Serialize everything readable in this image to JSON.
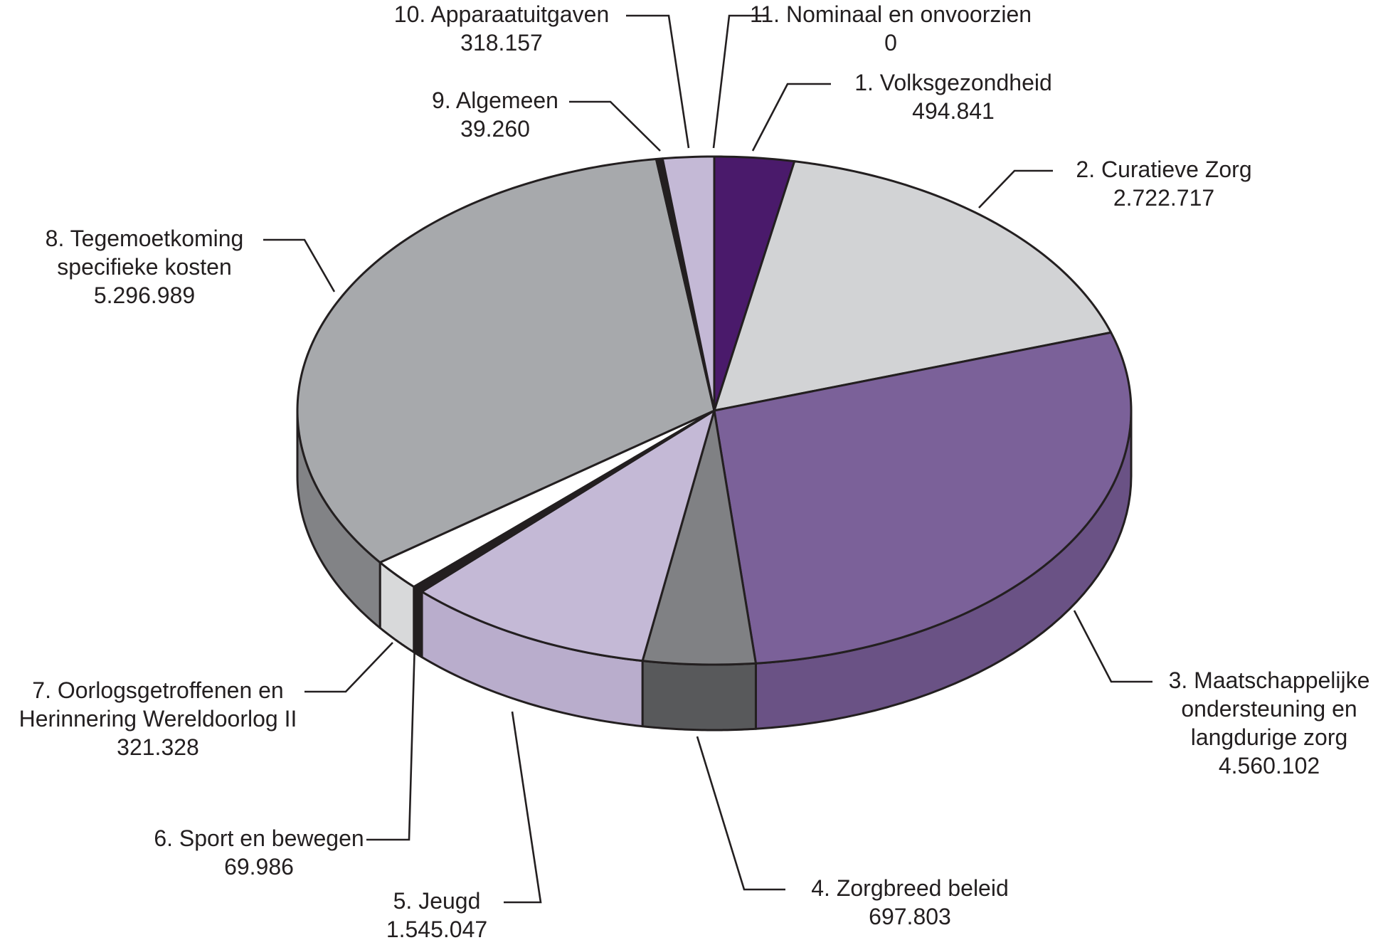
{
  "chart_data": {
    "type": "pie",
    "variant": "3d",
    "slices": [
      {
        "label": "1. Volksgezondheid",
        "value": 494841,
        "value_text": "494.841",
        "color": "#4a1a6b",
        "side_color": "#3b1456"
      },
      {
        "label": "2. Curatieve Zorg",
        "value": 2722717,
        "value_text": "2.722.717",
        "color": "#d2d3d5",
        "side_color": "#b9babc"
      },
      {
        "label": "3. Maatschappelijke ondersteuning en langdurige zorg",
        "value": 4560102,
        "value_text": "4.560.102",
        "color": "#7b6199",
        "side_color": "#6a5285"
      },
      {
        "label": "4. Zorgbreed beleid",
        "value": 697803,
        "value_text": "697.803",
        "color": "#808184",
        "side_color": "#58595b"
      },
      {
        "label": "5. Jeugd",
        "value": 1545047,
        "value_text": "1.545.047",
        "color": "#c4b9d6",
        "side_color": "#b9adcc"
      },
      {
        "label": "6. Sport en bewegen",
        "value": 69986,
        "value_text": "69.986",
        "color": "#231f20",
        "side_color": "#231f20"
      },
      {
        "label": "7. Oorlogsgetroffenen en Herinnering Wereldoorlog II",
        "value": 321328,
        "value_text": "321.328",
        "color": "#ffffff",
        "side_color": "#d8d9da"
      },
      {
        "label": "8. Tegemoetkoming specifieke kosten",
        "value": 5296989,
        "value_text": "5.296.989",
        "color": "#a7a9ac",
        "side_color": "#828386"
      },
      {
        "label": "9. Algemeen",
        "value": 39260,
        "value_text": "39.260",
        "color": "#231f20",
        "side_color": "#231f20"
      },
      {
        "label": "10. Apparaatuitgaven",
        "value": 318157,
        "value_text": "318.157",
        "color": "#c4b9d6",
        "side_color": "#b9adcc"
      },
      {
        "label": "11. Nominaal en onvoorzien",
        "value": 0,
        "value_text": "0",
        "color": "#231f20",
        "side_color": "#231f20"
      }
    ],
    "label_lines": [
      [
        "1. Volksgezondheid",
        "494.841"
      ],
      [
        "2. Curatieve Zorg",
        "2.722.717"
      ],
      [
        "3. Maatschappelijke",
        "ondersteuning en",
        "langdurige zorg",
        "4.560.102"
      ],
      [
        "4. Zorgbreed beleid",
        "697.803"
      ],
      [
        "5. Jeugd",
        "1.545.047"
      ],
      [
        "6. Sport en bewegen",
        "69.986"
      ],
      [
        "7. Oorlogsgetroffenen en",
        "Herinnering Wereldoorlog II",
        "321.328"
      ],
      [
        "8. Tegemoetkoming",
        "specifieke kosten",
        "5.296.989"
      ],
      [
        "9. Algemeen",
        "39.260"
      ],
      [
        "10. Apparaatuitgaven",
        "318.157"
      ],
      [
        "11. Nominaal en onvoorzien",
        "0"
      ]
    ],
    "start": "12 o'clock",
    "direction": "clockwise",
    "legend": "none"
  }
}
